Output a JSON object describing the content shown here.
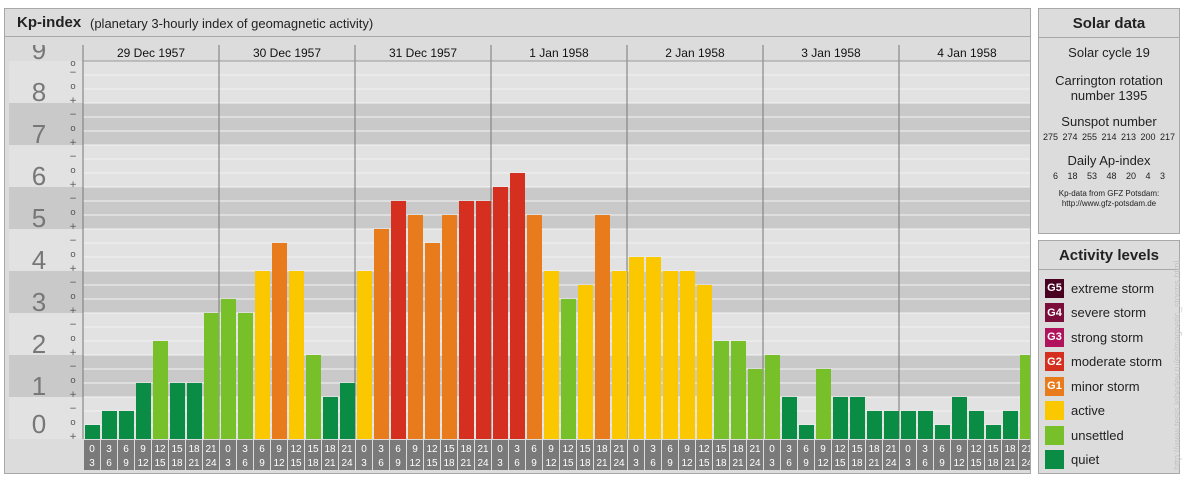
{
  "header": {
    "title": "Kp-index",
    "subtitle": "(planetary 3-hourly index of geomagnetic activity)"
  },
  "chart_data": {
    "type": "bar",
    "ylim": [
      0,
      9
    ],
    "y_ticks": [
      "0",
      "1",
      "2",
      "3",
      "4",
      "5",
      "6",
      "7",
      "8",
      "9"
    ],
    "sub_ticks": [
      "+",
      "o",
      "−"
    ],
    "days": [
      "29 Dec 1957",
      "30 Dec 1957",
      "31 Dec 1957",
      "1 Jan 1958",
      "2 Jan 1958",
      "3 Jan 1958",
      "4 Jan 1958"
    ],
    "hour_labels": [
      [
        "0",
        "3"
      ],
      [
        "3",
        "6"
      ],
      [
        "6",
        "9"
      ],
      [
        "9",
        "12"
      ],
      [
        "12",
        "15"
      ],
      [
        "15",
        "18"
      ],
      [
        "18",
        "21"
      ],
      [
        "21",
        "24"
      ]
    ],
    "values": [
      0.333,
      0.667,
      0.667,
      1.333,
      2.333,
      1.333,
      1.333,
      3.0,
      3.333,
      3.0,
      4.0,
      4.667,
      4.0,
      2.0,
      1.0,
      1.333,
      4.0,
      5.0,
      5.667,
      5.333,
      4.667,
      5.333,
      5.667,
      5.667,
      6.0,
      6.333,
      5.333,
      4.0,
      3.333,
      3.667,
      5.333,
      4.0,
      4.333,
      4.333,
      4.0,
      4.0,
      3.667,
      2.333,
      2.333,
      1.667,
      2.0,
      1.0,
      0.333,
      1.667,
      1.0,
      1.0,
      0.667,
      0.667,
      0.667,
      0.667,
      0.333,
      1.0,
      0.667,
      0.333,
      0.667,
      2.0
    ],
    "grid": true
  },
  "solar": {
    "title": "Solar data",
    "cycle": "Solar cycle 19",
    "carrington_label": "Carrington rotation",
    "carrington_number": "number 1395",
    "sunspot_label": "Sunspot number",
    "sunspot_values": "275 274 255 214 213 200 217",
    "ap_label": "Daily Ap-index",
    "ap_values": "6 18 53 48 20 4 3",
    "source_line1": "Kp-data from GFZ Potsdam:",
    "source_line2": "http://www.gfz-potsdam.de"
  },
  "activity": {
    "title": "Activity levels",
    "items": [
      {
        "code": "G5",
        "label": "extreme storm",
        "color": "#4a0020"
      },
      {
        "code": "G4",
        "label": "severe storm",
        "color": "#7a0d3a"
      },
      {
        "code": "G3",
        "label": "strong storm",
        "color": "#b0125c"
      },
      {
        "code": "G2",
        "label": "moderate storm",
        "color": "#d52f20"
      },
      {
        "code": "G1",
        "label": "minor storm",
        "color": "#e87c1c"
      },
      {
        "code": "",
        "label": "active",
        "color": "#fbc800"
      },
      {
        "code": "",
        "label": "unsettled",
        "color": "#78c02a"
      },
      {
        "code": "",
        "label": "quiet",
        "color": "#0a8c44"
      }
    ]
  },
  "watermark": "http://www.tesis.lebedev.ru/en/magnetic_storms.html"
}
